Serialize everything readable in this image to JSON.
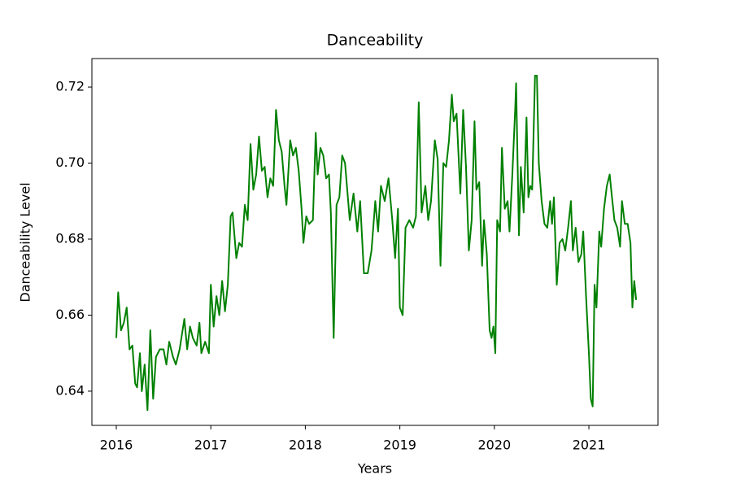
{
  "chart_data": {
    "type": "line",
    "title": "Danceability",
    "x_label": "Years",
    "y_label": "Danceability Level",
    "series": [
      {
        "name": "Danceability",
        "color": "#008000",
        "x": [
          2016.0,
          2016.02,
          2016.05,
          2016.08,
          2016.11,
          2016.14,
          2016.17,
          2016.2,
          2016.22,
          2016.25,
          2016.27,
          2016.3,
          2016.33,
          2016.36,
          2016.39,
          2016.42,
          2016.46,
          2016.5,
          2016.53,
          2016.56,
          2016.6,
          2016.63,
          2016.67,
          2016.72,
          2016.75,
          2016.78,
          2016.81,
          2016.85,
          2016.88,
          2016.9,
          2016.94,
          2016.98,
          2017.0,
          2017.03,
          2017.06,
          2017.09,
          2017.12,
          2017.15,
          2017.18,
          2017.21,
          2017.23,
          2017.27,
          2017.3,
          2017.33,
          2017.36,
          2017.39,
          2017.42,
          2017.45,
          2017.48,
          2017.51,
          2017.54,
          2017.57,
          2017.6,
          2017.63,
          2017.66,
          2017.69,
          2017.72,
          2017.75,
          2017.78,
          2017.8,
          2017.84,
          2017.87,
          2017.9,
          2017.93,
          2017.96,
          2017.98,
          2018.01,
          2018.04,
          2018.08,
          2018.11,
          2018.13,
          2018.16,
          2018.19,
          2018.22,
          2018.25,
          2018.27,
          2018.3,
          2018.33,
          2018.36,
          2018.39,
          2018.42,
          2018.47,
          2018.51,
          2018.55,
          2018.58,
          2018.62,
          2018.66,
          2018.7,
          2018.74,
          2018.77,
          2018.8,
          2018.84,
          2018.88,
          2018.92,
          2018.95,
          2018.98,
          2019.0,
          2019.03,
          2019.06,
          2019.1,
          2019.14,
          2019.17,
          2019.2,
          2019.23,
          2019.27,
          2019.3,
          2019.33,
          2019.37,
          2019.4,
          2019.43,
          2019.46,
          2019.49,
          2019.52,
          2019.55,
          2019.57,
          2019.6,
          2019.64,
          2019.67,
          2019.7,
          2019.73,
          2019.76,
          2019.79,
          2019.81,
          2019.84,
          2019.87,
          2019.89,
          2019.92,
          2019.95,
          2019.97,
          2019.99,
          2020.01,
          2020.03,
          2020.06,
          2020.08,
          2020.11,
          2020.14,
          2020.16,
          2020.19,
          2020.22,
          2020.23,
          2020.26,
          2020.28,
          2020.31,
          2020.34,
          2020.36,
          2020.38,
          2020.4,
          2020.43,
          2020.45,
          2020.47,
          2020.5,
          2020.53,
          2020.56,
          2020.59,
          2020.61,
          2020.63,
          2020.66,
          2020.69,
          2020.72,
          2020.75,
          2020.78,
          2020.81,
          2020.83,
          2020.86,
          2020.89,
          2020.92,
          2020.94,
          2020.97,
          2021.0,
          2021.02,
          2021.04,
          2021.06,
          2021.08,
          2021.11,
          2021.13,
          2021.16,
          2021.19,
          2021.22,
          2021.24,
          2021.27,
          2021.3,
          2021.33,
          2021.35,
          2021.38,
          2021.41,
          2021.44,
          2021.46,
          2021.48,
          2021.5
        ],
        "values": [
          0.654,
          0.666,
          0.656,
          0.658,
          0.662,
          0.651,
          0.652,
          0.642,
          0.641,
          0.65,
          0.64,
          0.647,
          0.635,
          0.656,
          0.638,
          0.649,
          0.651,
          0.651,
          0.647,
          0.653,
          0.649,
          0.647,
          0.651,
          0.659,
          0.651,
          0.657,
          0.654,
          0.652,
          0.658,
          0.65,
          0.653,
          0.65,
          0.668,
          0.657,
          0.665,
          0.66,
          0.669,
          0.661,
          0.668,
          0.686,
          0.687,
          0.675,
          0.679,
          0.678,
          0.689,
          0.685,
          0.705,
          0.693,
          0.697,
          0.707,
          0.698,
          0.699,
          0.691,
          0.696,
          0.694,
          0.714,
          0.706,
          0.703,
          0.694,
          0.689,
          0.706,
          0.702,
          0.704,
          0.698,
          0.688,
          0.679,
          0.686,
          0.684,
          0.685,
          0.708,
          0.697,
          0.704,
          0.702,
          0.696,
          0.697,
          0.687,
          0.654,
          0.689,
          0.691,
          0.702,
          0.7,
          0.685,
          0.692,
          0.682,
          0.69,
          0.671,
          0.671,
          0.677,
          0.69,
          0.682,
          0.694,
          0.69,
          0.696,
          0.685,
          0.675,
          0.688,
          0.662,
          0.66,
          0.683,
          0.685,
          0.683,
          0.686,
          0.716,
          0.687,
          0.694,
          0.685,
          0.69,
          0.706,
          0.701,
          0.673,
          0.7,
          0.699,
          0.706,
          0.718,
          0.711,
          0.713,
          0.692,
          0.714,
          0.699,
          0.677,
          0.685,
          0.711,
          0.693,
          0.695,
          0.673,
          0.685,
          0.676,
          0.656,
          0.654,
          0.657,
          0.65,
          0.685,
          0.682,
          0.704,
          0.688,
          0.69,
          0.682,
          0.697,
          0.714,
          0.721,
          0.681,
          0.699,
          0.687,
          0.712,
          0.691,
          0.694,
          0.693,
          0.723,
          0.723,
          0.7,
          0.69,
          0.684,
          0.683,
          0.69,
          0.684,
          0.691,
          0.668,
          0.679,
          0.68,
          0.677,
          0.683,
          0.69,
          0.677,
          0.683,
          0.674,
          0.676,
          0.682,
          0.665,
          0.65,
          0.638,
          0.636,
          0.668,
          0.662,
          0.682,
          0.678,
          0.688,
          0.694,
          0.697,
          0.692,
          0.685,
          0.683,
          0.678,
          0.69,
          0.684,
          0.684,
          0.679,
          0.662,
          0.669,
          0.664
        ]
      }
    ],
    "xlim": [
      2015.742,
      2021.731
    ],
    "xticks": [
      2016,
      2017,
      2018,
      2019,
      2020,
      2021
    ],
    "ylim": [
      0.631,
      0.7275
    ],
    "yticks": [
      0.64,
      0.66,
      0.68,
      {
        "value": 0.7,
        "label": "0.70"
      },
      0.72
    ]
  }
}
